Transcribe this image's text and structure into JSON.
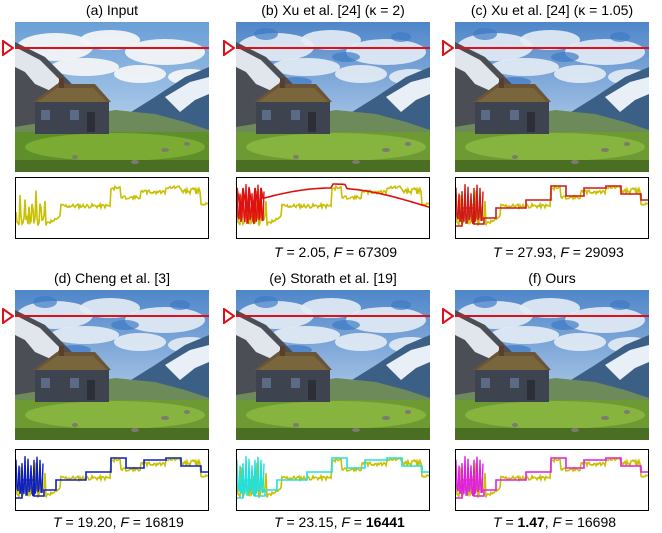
{
  "panels": [
    {
      "id": "a",
      "caption": "(a) Input",
      "metrics": null,
      "style": "input",
      "line_color": "#c8c000"
    },
    {
      "id": "b",
      "caption": "(b) Xu et al. [24] (κ = 2)",
      "metrics": {
        "T": "2.05",
        "F": "67309",
        "T_bold": false,
        "F_bold": false
      },
      "style": "smooth",
      "line_color": "#e01010"
    },
    {
      "id": "c",
      "caption": "(c) Xu et al. [24] (κ = 1.05)",
      "metrics": {
        "T": "27.93",
        "F": "29093",
        "T_bold": false,
        "F_bold": false
      },
      "style": "flat",
      "line_color": "#d01818"
    },
    {
      "id": "d",
      "caption": "(d) Cheng et al. [3]",
      "metrics": {
        "T": "19.20",
        "F": "16819",
        "T_bold": false,
        "F_bold": false
      },
      "style": "flat",
      "line_color": "#1020c0"
    },
    {
      "id": "e",
      "caption": "(e) Storath et al. [19]",
      "metrics": {
        "T": "23.15",
        "F": "16441",
        "T_bold": false,
        "F_bold": true
      },
      "style": "flat",
      "line_color": "#20e0e0"
    },
    {
      "id": "f",
      "caption": "(f) Ours",
      "metrics": {
        "T": "1.47",
        "F": "16698",
        "T_bold": true,
        "F_bold": false
      },
      "style": "flat",
      "line_color": "#e020e0"
    }
  ],
  "labels": {
    "T": "T",
    "F": "F",
    "eq": " = ",
    "sep": ", "
  },
  "colors": {
    "scanline": "#e0101a",
    "input_profile": "#c8c000"
  }
}
